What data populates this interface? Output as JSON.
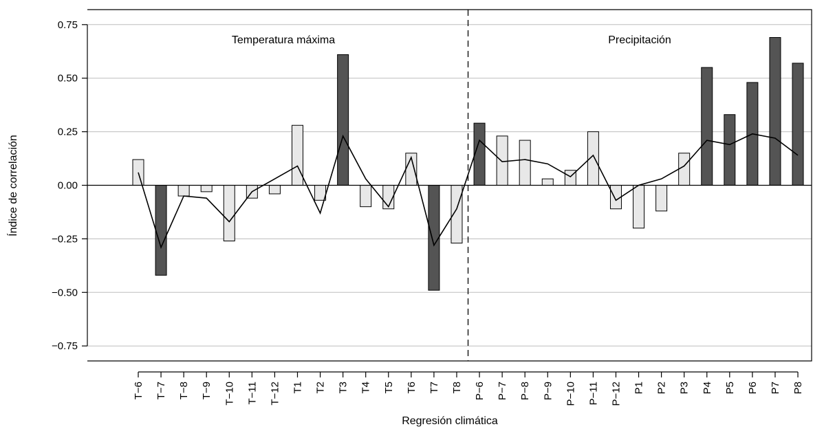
{
  "chart_data": {
    "type": "bar",
    "xlabel": "Regresión climática",
    "ylabel": "Índice de correlación",
    "ylim": [
      -0.82,
      0.82
    ],
    "yticks": [
      -0.75,
      -0.5,
      -0.25,
      0.0,
      0.25,
      0.5,
      0.75
    ],
    "ytick_labels": [
      "−0.75",
      "−0.50",
      "−0.25",
      "0.00",
      "0.25",
      "0.50",
      "0.75"
    ],
    "grid": "horizontal",
    "panel_labels": [
      "Temperatura máxima",
      "Precipitación"
    ],
    "divider_after_index": 14,
    "categories": [
      "T−6",
      "T−7",
      "T−8",
      "T−9",
      "T−10",
      "T−11",
      "T−12",
      "T1",
      "T2",
      "T3",
      "T4",
      "T5",
      "T6",
      "T7",
      "T8",
      "P−6",
      "P−7",
      "P−8",
      "P−9",
      "P−10",
      "P−11",
      "P−12",
      "P1",
      "P2",
      "P3",
      "P4",
      "P5",
      "P6",
      "P7",
      "P8"
    ],
    "series": [
      {
        "type": "bar",
        "values": [
          0.12,
          -0.42,
          -0.05,
          -0.03,
          -0.26,
          -0.06,
          -0.04,
          0.28,
          -0.07,
          0.61,
          -0.1,
          -0.11,
          0.15,
          -0.49,
          -0.27,
          0.29,
          0.23,
          0.21,
          0.03,
          0.07,
          0.25,
          -0.11,
          -0.2,
          -0.12,
          0.15,
          0.55,
          0.33,
          0.48,
          0.69,
          0.57
        ],
        "significant": [
          false,
          true,
          false,
          false,
          false,
          false,
          false,
          false,
          false,
          true,
          false,
          false,
          false,
          true,
          false,
          true,
          false,
          false,
          false,
          false,
          false,
          false,
          false,
          false,
          false,
          true,
          true,
          true,
          true,
          true
        ]
      },
      {
        "type": "line",
        "values": [
          0.06,
          -0.29,
          -0.05,
          -0.06,
          -0.17,
          -0.03,
          0.03,
          0.09,
          -0.13,
          0.23,
          0.03,
          -0.1,
          0.13,
          -0.28,
          -0.11,
          0.21,
          0.11,
          0.12,
          0.1,
          0.04,
          0.14,
          -0.07,
          0.0,
          0.03,
          0.09,
          0.21,
          0.19,
          0.24,
          0.22,
          0.14
        ]
      }
    ],
    "colors": {
      "significant_fill": "#545454",
      "nonsignificant_fill": "#e8e8e8",
      "bar_stroke": "#000000",
      "line": "#000000",
      "grid": "#bdbdbd"
    }
  }
}
